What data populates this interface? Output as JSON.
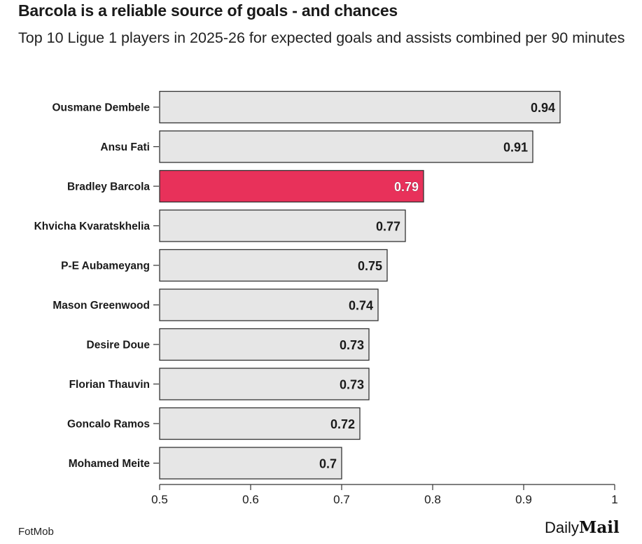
{
  "header": {
    "title": "Barcola is a reliable source of goals - and chances",
    "subtitle": "Top 10 Ligue 1 players in 2025-26 for expected goals and assists combined per 90 minutes"
  },
  "footer": {
    "source": "FotMob",
    "brand_left": "Daily",
    "brand_right": "Mail"
  },
  "colors": {
    "bar_default": "#e6e6e6",
    "bar_highlight": "#e8315a",
    "bar_stroke": "#333333",
    "text": "#1a1a1a"
  },
  "chart_data": {
    "type": "bar",
    "orientation": "horizontal",
    "categories": [
      "Ousmane Dembele",
      "Ansu Fati",
      "Bradley Barcola",
      "Khvicha Kvaratskhelia",
      "P-E Aubameyang",
      "Mason Greenwood",
      "Desire Doue",
      "Florian Thauvin",
      "Goncalo Ramos",
      "Mohamed Meite"
    ],
    "values": [
      0.94,
      0.91,
      0.79,
      0.77,
      0.75,
      0.74,
      0.73,
      0.73,
      0.72,
      0.7
    ],
    "value_labels": [
      "0.94",
      "0.91",
      "0.79",
      "0.77",
      "0.75",
      "0.74",
      "0.73",
      "0.73",
      "0.72",
      "0.7"
    ],
    "highlight": "Bradley Barcola",
    "xlim": [
      0.5,
      1
    ],
    "xticks": [
      0.5,
      0.6,
      0.7,
      0.8,
      0.9,
      1
    ],
    "xtick_labels": [
      "0.5",
      "0.6",
      "0.7",
      "0.8",
      "0.9",
      "1"
    ],
    "xlabel": "",
    "ylabel": "",
    "grid": false,
    "legend": "none"
  }
}
